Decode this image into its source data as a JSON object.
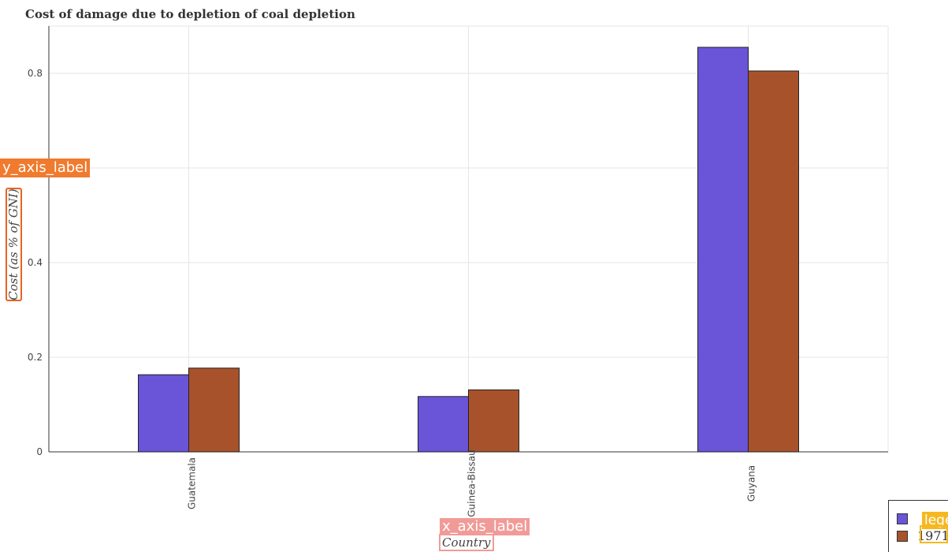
{
  "title": "Cost of damage due to depletion of coal depletion",
  "annotations": {
    "y_axis_tag": "y_axis_label",
    "x_axis_tag": "x_axis_label",
    "legend_tag": "legend"
  },
  "legend_visible_labels": [
    "",
    "1971"
  ],
  "colors": {
    "series_1": "#6a54d8",
    "series_2": "#a8522c",
    "y_tag": "#f07a2d",
    "x_tag": "#f19b98",
    "legend_tag": "#f5b820"
  },
  "chart_data": {
    "type": "bar",
    "title": "Cost of damage due to depletion of coal depletion",
    "xlabel": "Country",
    "ylabel": "Cost (as % of GNI)",
    "categories": [
      "Guatemala",
      "Guinea-Bissau",
      "Guyana"
    ],
    "series": [
      {
        "name": "",
        "color": "#6a54d8",
        "values": [
          0.163,
          0.117,
          0.855
        ]
      },
      {
        "name": "1971",
        "color": "#a8522c",
        "values": [
          0.177,
          0.131,
          0.805
        ]
      }
    ],
    "ylim": [
      0,
      0.9
    ],
    "yticks": [
      0,
      0.2,
      0.4,
      0.6,
      0.8
    ],
    "ytick_labels": [
      "0",
      "0.2",
      "0.4",
      "",
      "0.8"
    ],
    "grid": true,
    "legend_position": "bottom-right"
  }
}
